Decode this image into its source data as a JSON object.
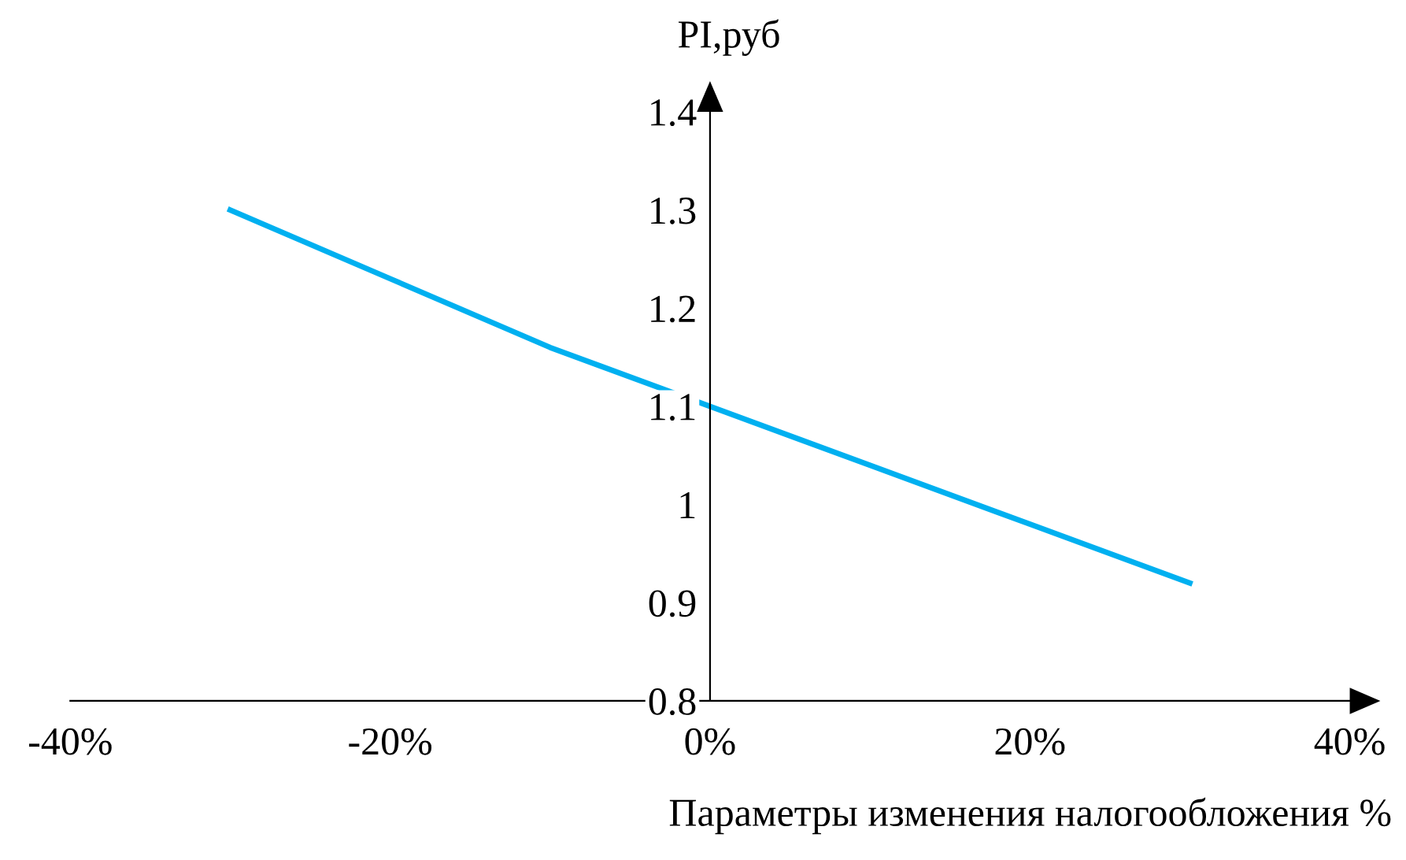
{
  "chart_data": {
    "type": "line",
    "xlabel": "Параметры изменения налогообложения %",
    "ylabel": "PI,руб",
    "x": [
      -30,
      -20,
      -10,
      0,
      10,
      20,
      30
    ],
    "series": [
      {
        "color": "#00b0f0",
        "values": [
          1.3,
          1.23,
          1.16,
          1.1,
          1.04,
          0.98,
          0.92
        ]
      }
    ],
    "xlim": [
      -40,
      40
    ],
    "ylim": [
      0.8,
      1.4
    ],
    "xticks": [
      {
        "value": -40,
        "label": "-40%"
      },
      {
        "value": -20,
        "label": "-20%"
      },
      {
        "value": 0,
        "label": "0%"
      },
      {
        "value": 20,
        "label": "20%"
      },
      {
        "value": 40,
        "label": "40%"
      }
    ],
    "yticks": [
      0.8,
      0.9,
      1,
      1.1,
      1.2,
      1.3,
      1.4
    ],
    "grid": false,
    "marker": "none",
    "line_style": "solid"
  }
}
